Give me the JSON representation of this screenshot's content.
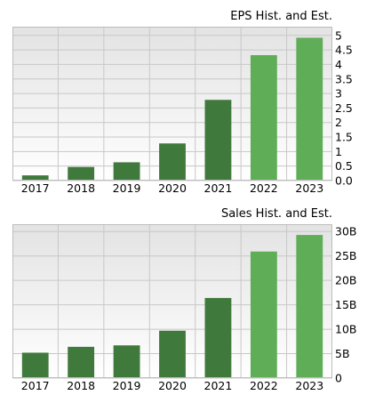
{
  "chart_data": [
    {
      "type": "bar",
      "title": "EPS Hist. and Est.",
      "categories": [
        "2017",
        "2018",
        "2019",
        "2020",
        "2021",
        "2022",
        "2023"
      ],
      "values": [
        0.18,
        0.47,
        0.63,
        1.28,
        2.78,
        4.32,
        4.92
      ],
      "estimate": [
        false,
        false,
        false,
        false,
        false,
        true,
        true
      ],
      "yticks": [
        0,
        0.5,
        1,
        1.5,
        2,
        2.5,
        3,
        3.5,
        4,
        4.5,
        5
      ],
      "ytick_labels": [
        "0.0",
        "0.5",
        "1",
        "1.5",
        "2",
        "2.5",
        "3",
        "3.5",
        "4",
        "4.5",
        "5"
      ],
      "ylim": [
        0,
        5.3
      ],
      "grid": true,
      "y_axis_side": "right"
    },
    {
      "type": "bar",
      "title": "Sales Hist. and Est.",
      "categories": [
        "2017",
        "2018",
        "2019",
        "2020",
        "2021",
        "2022",
        "2023"
      ],
      "values": [
        5.2,
        6.4,
        6.7,
        9.7,
        16.4,
        25.9,
        29.3
      ],
      "estimate": [
        false,
        false,
        false,
        false,
        false,
        true,
        true
      ],
      "yticks": [
        0,
        5,
        10,
        15,
        20,
        25,
        30
      ],
      "ytick_labels": [
        "0",
        "5B",
        "10B",
        "15B",
        "20B",
        "25B",
        "30B"
      ],
      "ylim": [
        0,
        31.5
      ],
      "grid": true,
      "y_axis_side": "right"
    }
  ],
  "colors": {
    "historical_bar": "#3f7a3c",
    "estimate_bar": "#5fad56",
    "plot_bg_top": "#e3e3e3",
    "plot_bg_bottom": "#ffffff",
    "grid": "#c8c8c8",
    "frame": "#bdbdbd"
  }
}
